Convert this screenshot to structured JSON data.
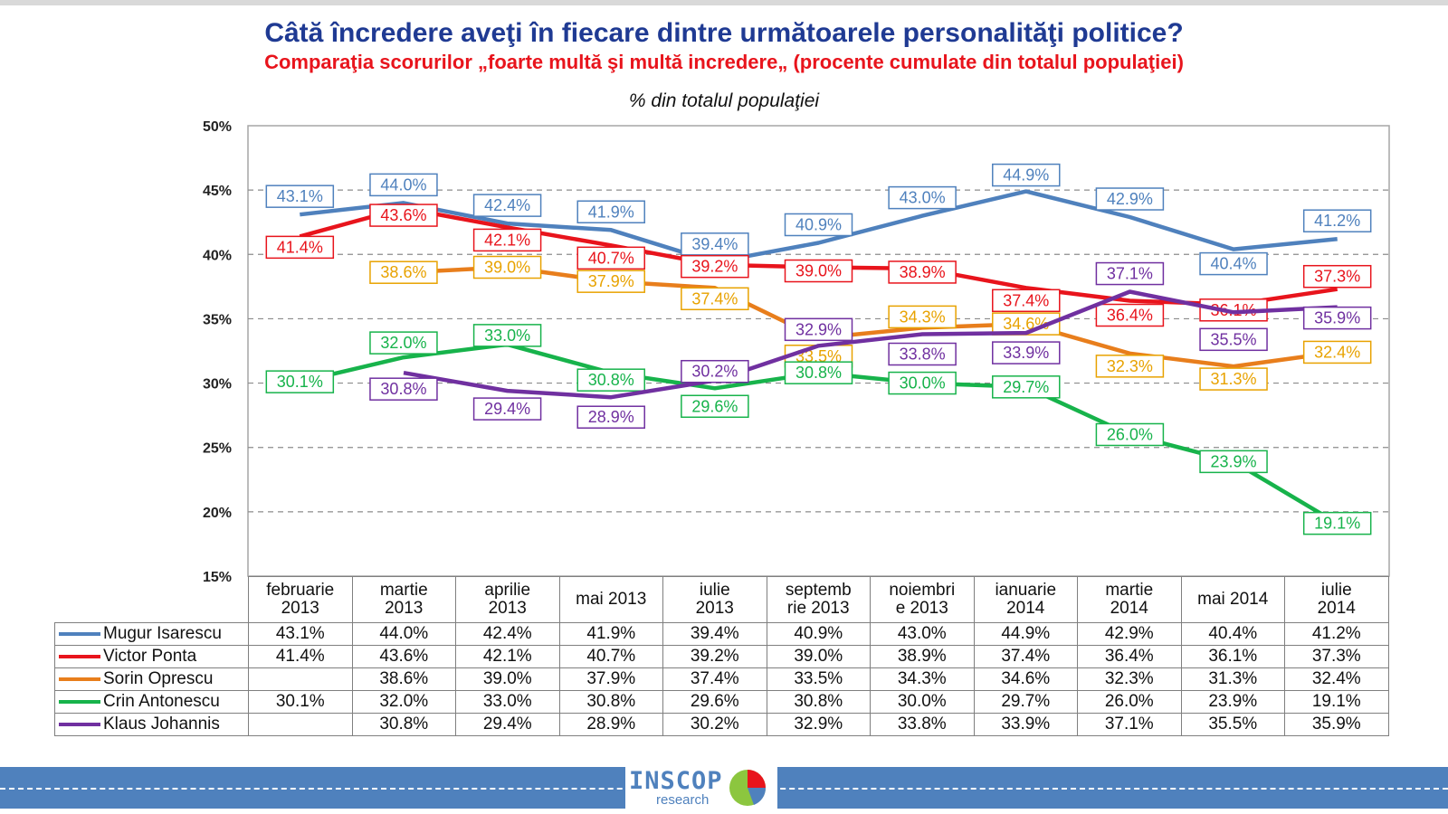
{
  "title": "Câtă încredere aveţi în fiecare dintre următoarele personalităţi politice?",
  "subtitle": "Comparaţia scorurilor „foarte multă şi multă incredere„ (procente cumulate din totalul populaţiei)",
  "logo_text": "INSCOP",
  "logo_sub": "research",
  "chart_data": {
    "type": "line",
    "title": "% din totalul populaţiei",
    "ylim": [
      15,
      50
    ],
    "y_ticks": [
      "15%",
      "20%",
      "25%",
      "30%",
      "35%",
      "40%",
      "45%",
      "50%"
    ],
    "y_tick_values": [
      15,
      20,
      25,
      30,
      35,
      40,
      45,
      50
    ],
    "grid": "dashed horizontal",
    "legend": "bottom (in data table)",
    "categories": [
      [
        "februarie",
        "2013"
      ],
      [
        "martie",
        "2013"
      ],
      [
        "aprilie",
        "2013"
      ],
      [
        "mai 2013"
      ],
      [
        "iulie",
        "2013"
      ],
      [
        "septemb",
        "rie 2013"
      ],
      [
        "noiembri",
        "e 2013"
      ],
      [
        "ianuarie",
        "2014"
      ],
      [
        "martie",
        "2014"
      ],
      [
        "mai 2014"
      ],
      [
        "iulie",
        "2014"
      ]
    ],
    "series": [
      {
        "name": "Mugur Isarescu",
        "color": "#4f81bd",
        "values": [
          43.1,
          44.0,
          42.4,
          41.9,
          39.4,
          40.9,
          43.0,
          44.9,
          42.9,
          40.4,
          41.2
        ]
      },
      {
        "name": "Victor Ponta",
        "color": "#e8141c",
        "values": [
          41.4,
          43.6,
          42.1,
          40.7,
          39.2,
          39.0,
          38.9,
          37.4,
          36.4,
          36.1,
          37.3
        ]
      },
      {
        "name": "Sorin Oprescu",
        "color": "#e87e1c",
        "values": [
          null,
          38.6,
          39.0,
          37.9,
          37.4,
          33.5,
          34.3,
          34.6,
          32.3,
          31.3,
          32.4
        ]
      },
      {
        "name": "Crin Antonescu",
        "color": "#17b34b",
        "values": [
          30.1,
          32.0,
          33.0,
          30.8,
          29.6,
          30.8,
          30.0,
          29.7,
          26.0,
          23.9,
          19.1
        ]
      },
      {
        "name": "Klaus Johannis",
        "color": "#7030a0",
        "values": [
          null,
          30.8,
          29.4,
          28.9,
          30.2,
          32.9,
          33.8,
          33.9,
          37.1,
          35.5,
          35.9
        ]
      }
    ],
    "label_colors": {
      "Sorin Oprescu": "#e8a200"
    }
  }
}
